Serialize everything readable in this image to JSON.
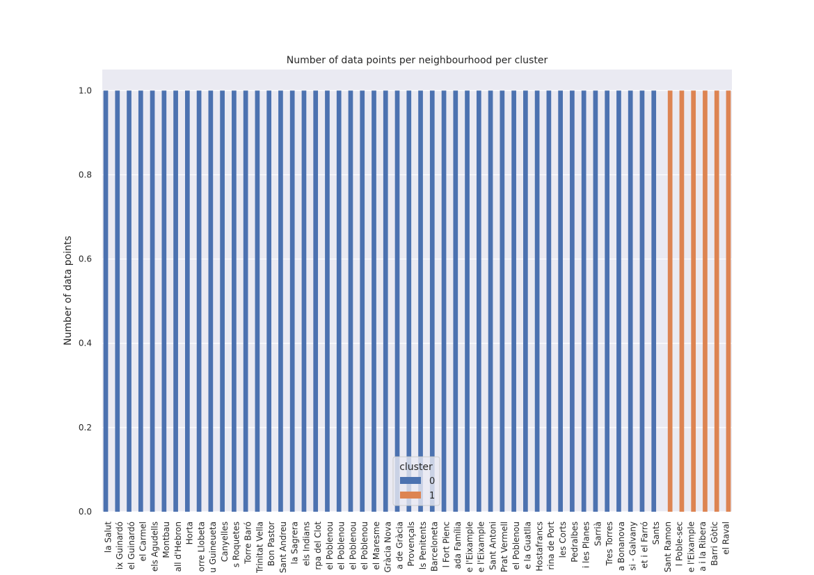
{
  "chart_data": {
    "type": "bar",
    "title": "Number of data points per neighbourhood per cluster",
    "xlabel": "",
    "ylabel": "Number of data points",
    "ylim": [
      0,
      1.05
    ],
    "yticks": [
      "0.0",
      "0.2",
      "0.4",
      "0.6",
      "0.8",
      "1.0"
    ],
    "ytick_values": [
      0,
      0.2,
      0.4,
      0.6,
      0.8,
      1.0
    ],
    "grid": true,
    "legend_position": "bottom-center",
    "legend_title": "cluster",
    "series": [
      {
        "name": "0",
        "color": "#4c72b0"
      },
      {
        "name": "1",
        "color": "#dd8452"
      }
    ],
    "categories": [
      "la Salut",
      "ix Guinardó",
      "el Guinardó",
      "el Carmel",
      "els Agudells",
      "Montbau",
      "all d'Hebron",
      "Horta",
      "orre Llobeta",
      "u Guineueta",
      "Canyelles",
      "s Roquetes",
      "Torre Baró",
      "Trinitat Vella",
      "Bon Pastor",
      "Sant Andreu",
      "la Sagrera",
      "els Indians",
      "rpa del Clot",
      "el Poblenou",
      "el Poblenou",
      "el Poblenou",
      "el Poblenou",
      "el Maresme",
      "Gràcia Nova",
      "a de Gràcia",
      "Provençals",
      "ls Penitents",
      "Barceloneta",
      "l Fort Pienc",
      "ada Família",
      "e l'Eixample",
      "e l'Eixample",
      "Sant Antoni",
      "Prat Vermell",
      "el Poblenou",
      "e la Guatlla",
      "Hostafrancs",
      "rina de Port",
      "les Corts",
      "Pedralbes",
      "i les Planes",
      "Sarrià",
      "Tres Torres",
      "a Bonanova",
      "si - Galvany",
      "et i el Farró",
      "Sants",
      "Sant Ramon",
      "l Poble-sec",
      "e l'Eixample",
      "a i la Ribera",
      "Barri Gòtic",
      "el Raval"
    ],
    "cluster": [
      0,
      0,
      0,
      0,
      0,
      0,
      0,
      0,
      0,
      0,
      0,
      0,
      0,
      0,
      0,
      0,
      0,
      0,
      0,
      0,
      0,
      0,
      0,
      0,
      0,
      0,
      0,
      0,
      0,
      0,
      0,
      0,
      0,
      0,
      0,
      0,
      0,
      0,
      0,
      0,
      0,
      0,
      0,
      0,
      0,
      0,
      0,
      0,
      1,
      1,
      1,
      1,
      1,
      1
    ],
    "values": [
      1,
      1,
      1,
      1,
      1,
      1,
      1,
      1,
      1,
      1,
      1,
      1,
      1,
      1,
      1,
      1,
      1,
      1,
      1,
      1,
      1,
      1,
      1,
      1,
      1,
      1,
      1,
      1,
      1,
      1,
      1,
      1,
      1,
      1,
      1,
      1,
      1,
      1,
      1,
      1,
      1,
      1,
      1,
      1,
      1,
      1,
      1,
      1,
      1,
      1,
      1,
      1,
      1,
      1
    ]
  }
}
